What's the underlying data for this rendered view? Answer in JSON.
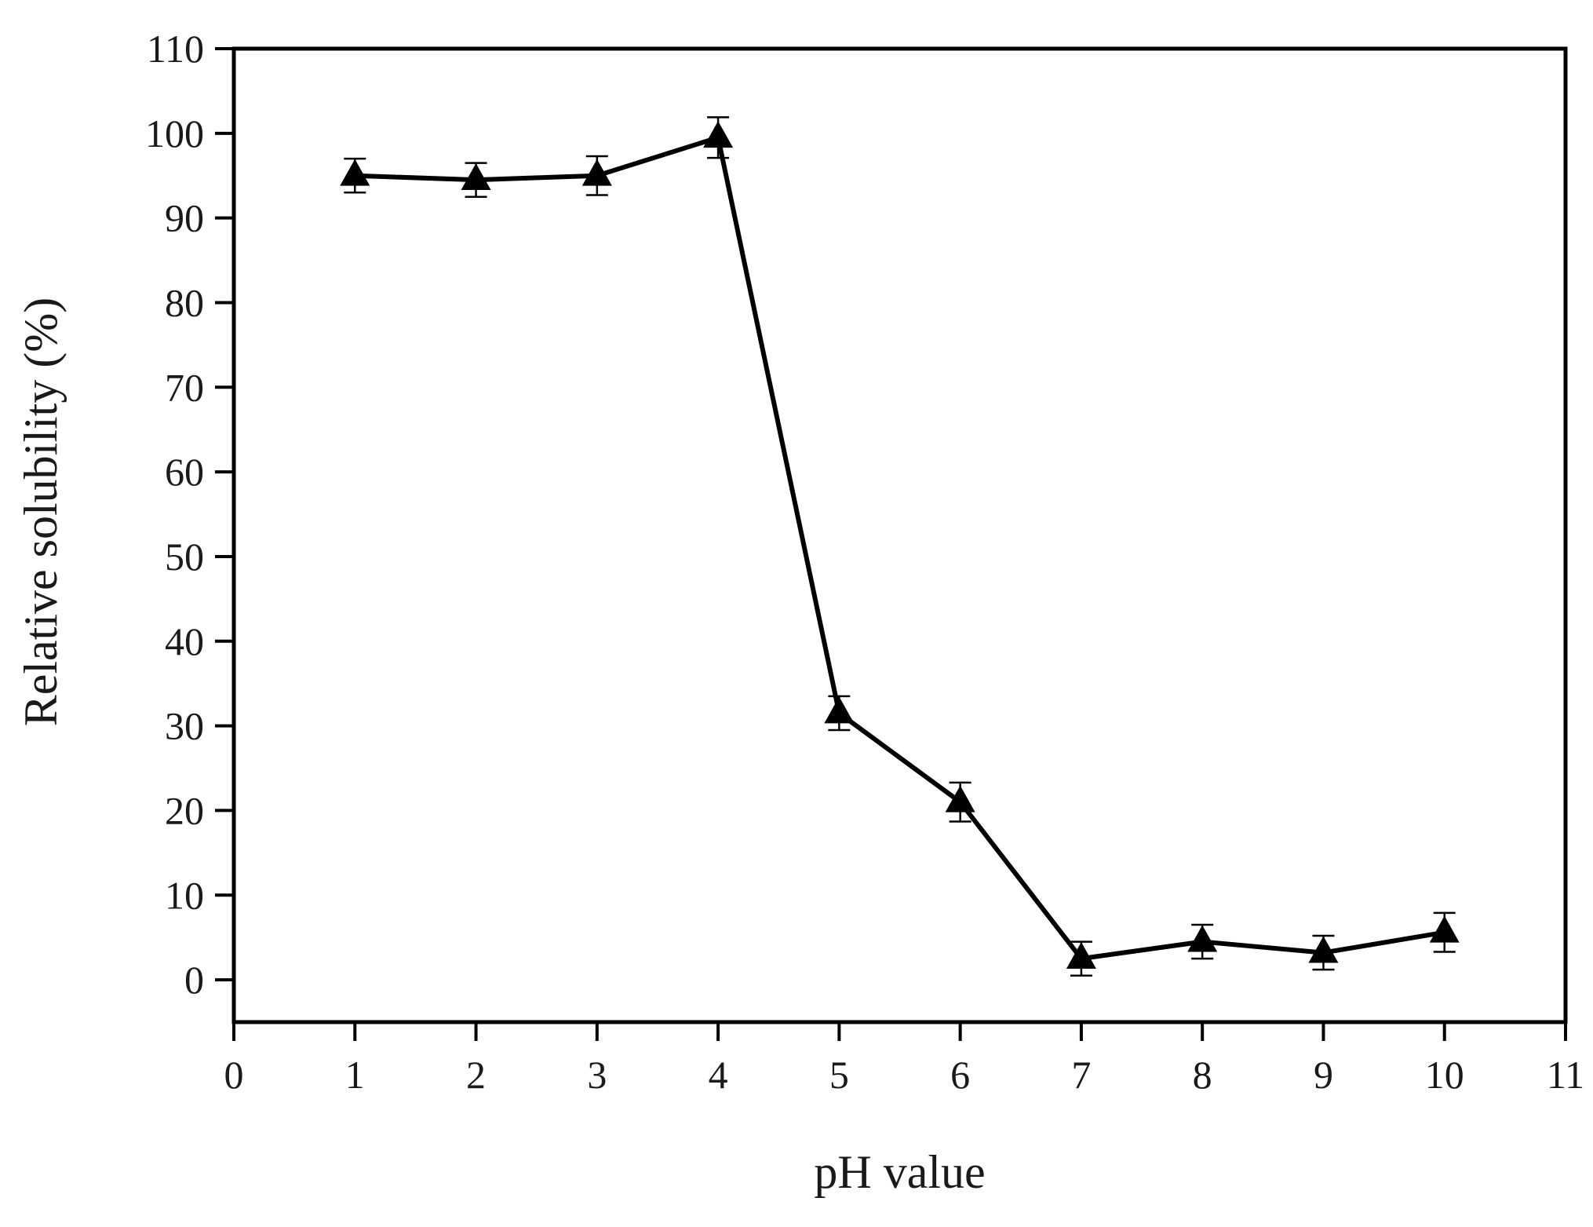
{
  "chart_data": {
    "type": "line",
    "xlabel": "pH value",
    "ylabel": "Relative solubility (%)",
    "xlim": [
      0,
      11
    ],
    "ylim": [
      -5,
      110
    ],
    "x_ticks": [
      0,
      1,
      2,
      3,
      4,
      5,
      6,
      7,
      8,
      9,
      10,
      11
    ],
    "y_ticks": [
      0,
      10,
      20,
      30,
      40,
      50,
      60,
      70,
      80,
      90,
      100,
      110
    ],
    "grid": false,
    "marker": "triangle",
    "series": [
      {
        "x": [
          1,
          2,
          3,
          4,
          5,
          6,
          7,
          8,
          9,
          10
        ],
        "y": [
          95,
          94.5,
          95,
          99.5,
          31.5,
          21,
          2.5,
          4.5,
          3.2,
          5.6
        ],
        "error": [
          2,
          2,
          2.3,
          2.4,
          2,
          2.3,
          2,
          2,
          2,
          2.3
        ]
      }
    ]
  }
}
